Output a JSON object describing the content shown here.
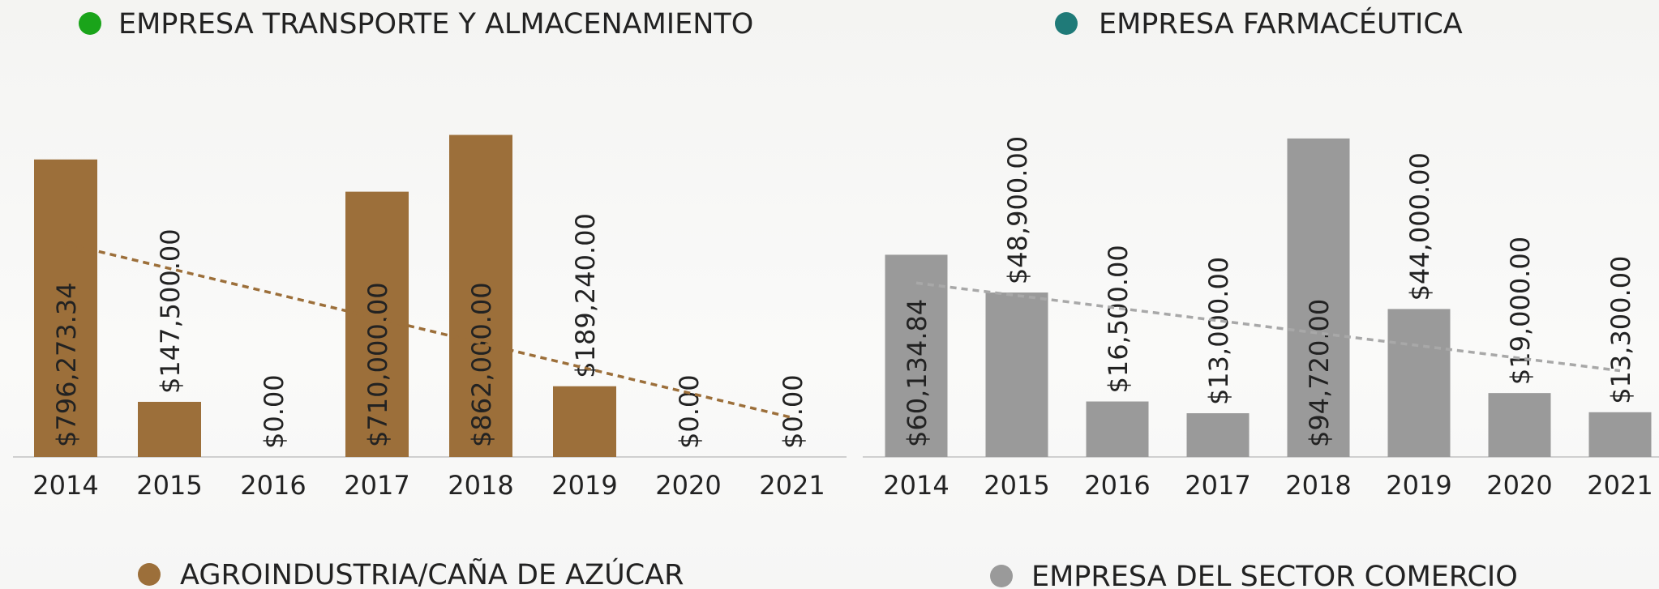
{
  "chart_data": [
    {
      "type": "bar",
      "title": "EMPRESA TRANSPORTE Y ALMACENAMIENTO",
      "title_marker_color": "#1aa41a",
      "categories": [
        "2014",
        "2015",
        "2016",
        "2017",
        "2018",
        "2019",
        "2020",
        "2021"
      ],
      "series": [
        {
          "name": "AGROINDUSTRIA/CAÑA DE AZÚCAR",
          "color": "#9c6f3a",
          "values": [
            796273.34,
            147500,
            0,
            710000,
            862000,
            189240,
            0,
            0
          ],
          "value_labels": [
            "$796,273.34",
            "$147,500.00",
            "$0.00",
            "$710,000.00",
            "$862,000.00",
            "$189,240.00",
            "$0.00",
            "$0.00"
          ]
        }
      ],
      "ylim": [
        0,
        900000
      ],
      "trendline": true,
      "trendline_color": "#9c6f3a"
    },
    {
      "type": "bar",
      "title": "EMPRESA FARMACÉUTICA",
      "title_marker_color": "#1f7a78",
      "categories": [
        "2014",
        "2015",
        "2016",
        "2017",
        "2018",
        "2019",
        "2020",
        "2021"
      ],
      "series": [
        {
          "name": "EMPRESA DEL SECTOR COMERCIO",
          "color": "#9a9a9a",
          "values": [
            60134.84,
            48900,
            16500,
            13000,
            94720,
            44000,
            19000,
            13300
          ],
          "value_labels": [
            "$60,134.84",
            "$48,900.00",
            "$16,500.00",
            "$13,000.00",
            "$94,720.00",
            "$44,000.00",
            "$19,000.00",
            "$13,300.00"
          ]
        }
      ],
      "ylim": [
        0,
        100000
      ],
      "trendline": true,
      "trendline_color": "#a8a8a8"
    }
  ]
}
